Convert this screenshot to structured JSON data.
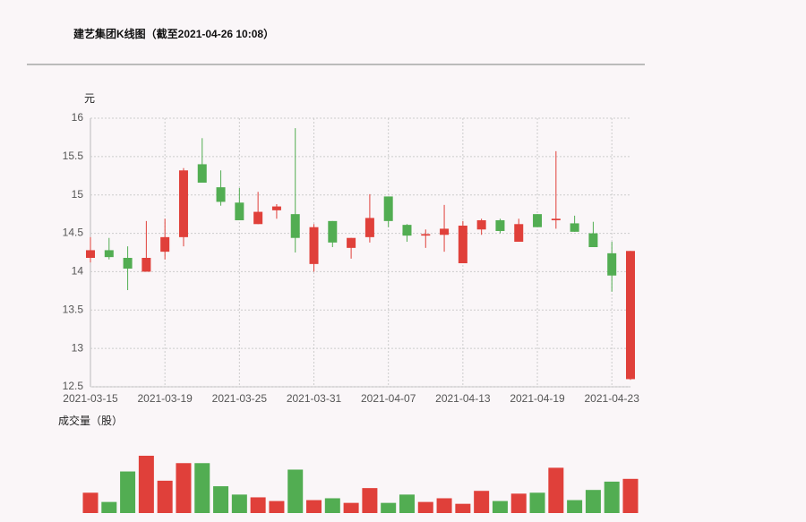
{
  "chart_data": {
    "type": "candlestick",
    "title": "建艺集团K线图（截至2021-04-26 10:08）",
    "y_label": "元",
    "volume_label": "成交量（股）",
    "up_color": "#e0403a",
    "down_color": "#52ad52",
    "categories": [
      "2021-03-15",
      null,
      null,
      null,
      "2021-03-19",
      null,
      null,
      null,
      "2021-03-25",
      null,
      null,
      null,
      "2021-03-31",
      null,
      null,
      null,
      "2021-04-07",
      null,
      null,
      null,
      "2021-04-13",
      null,
      null,
      null,
      "2021-04-19",
      null,
      null,
      null,
      "2021-04-23",
      null
    ],
    "open": [
      14.18,
      14.28,
      14.18,
      14.0,
      14.26,
      14.45,
      15.4,
      15.1,
      14.9,
      14.62,
      14.8,
      14.75,
      14.1,
      14.66,
      14.31,
      14.45,
      14.98,
      14.61,
      14.47,
      14.48,
      14.11,
      14.55,
      14.67,
      14.39,
      14.75,
      14.67,
      14.63,
      14.5,
      14.24,
      12.6
    ],
    "high": [
      14.45,
      14.44,
      14.33,
      14.66,
      14.69,
      15.35,
      15.74,
      15.32,
      15.09,
      15.04,
      14.88,
      15.87,
      14.62,
      14.66,
      14.44,
      15.01,
      14.98,
      14.62,
      14.55,
      14.87,
      14.66,
      14.69,
      14.69,
      14.69,
      14.75,
      15.57,
      14.73,
      14.65,
      14.39,
      14.27
    ],
    "low": [
      14.12,
      14.16,
      13.76,
      14.0,
      14.16,
      14.33,
      15.16,
      14.86,
      14.67,
      14.62,
      14.69,
      14.25,
      14.0,
      14.32,
      14.17,
      14.38,
      14.58,
      14.39,
      14.31,
      14.26,
      14.11,
      14.48,
      14.5,
      14.39,
      14.58,
      14.56,
      14.52,
      14.32,
      13.74,
      12.59
    ],
    "close": [
      14.28,
      14.19,
      14.04,
      14.18,
      14.45,
      15.32,
      15.16,
      14.91,
      14.67,
      14.78,
      14.85,
      14.44,
      14.58,
      14.38,
      14.44,
      14.7,
      14.66,
      14.47,
      14.49,
      14.56,
      14.6,
      14.67,
      14.53,
      14.62,
      14.58,
      14.69,
      14.52,
      14.32,
      13.95,
      14.27
    ],
    "volume": [
      22,
      12,
      45,
      62,
      35,
      54,
      54,
      29,
      20,
      17,
      13,
      47,
      14,
      16,
      11,
      27,
      11,
      20,
      12,
      16,
      10,
      24,
      13,
      21,
      22,
      49,
      14,
      25,
      34,
      37
    ],
    "ylim": [
      12.5,
      16
    ],
    "yticks": [
      12.5,
      13,
      13.5,
      14,
      14.5,
      15,
      15.5,
      16
    ],
    "grid": true
  }
}
